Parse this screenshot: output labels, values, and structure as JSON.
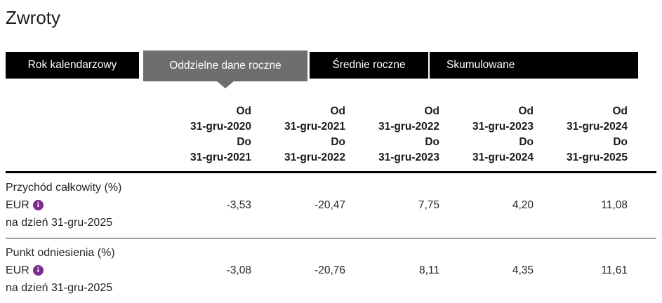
{
  "page": {
    "title": "Zwroty"
  },
  "tabs": [
    {
      "label": "Rok kalendarzowy",
      "selected": false
    },
    {
      "label": "Oddzielne dane roczne",
      "selected": true
    },
    {
      "label": "Średnie roczne",
      "selected": false
    },
    {
      "label": "Skumulowane",
      "selected": false
    }
  ],
  "colors": {
    "tab_bg": "#000000",
    "tab_selected_bg": "#6e6e6e",
    "tab_text": "#ffffff",
    "info_icon_bg": "#7d2b8f",
    "text": "#262626"
  },
  "table": {
    "info_icon_glyph": "i",
    "columns": [
      {
        "from_label": "Od",
        "from_date": "31-gru-2020",
        "to_label": "Do",
        "to_date": "31-gru-2021"
      },
      {
        "from_label": "Od",
        "from_date": "31-gru-2021",
        "to_label": "Do",
        "to_date": "31-gru-2022"
      },
      {
        "from_label": "Od",
        "from_date": "31-gru-2022",
        "to_label": "Do",
        "to_date": "31-gru-2023"
      },
      {
        "from_label": "Od",
        "from_date": "31-gru-2023",
        "to_label": "Do",
        "to_date": "31-gru-2024"
      },
      {
        "from_label": "Od",
        "from_date": "31-gru-2024",
        "to_label": "Do",
        "to_date": "31-gru-2025"
      }
    ],
    "rows": [
      {
        "name": "Przychód całkowity (%)",
        "currency": "EUR",
        "as_of": "na dzień 31-gru-2025",
        "values": [
          "-3,53",
          "-20,47",
          "7,75",
          "4,20",
          "11,08"
        ]
      },
      {
        "name": "Punkt odniesienia (%)",
        "currency": "EUR",
        "as_of": "na dzień 31-gru-2025",
        "values": [
          "-3,08",
          "-20,76",
          "8,11",
          "4,35",
          "11,61"
        ]
      }
    ]
  }
}
